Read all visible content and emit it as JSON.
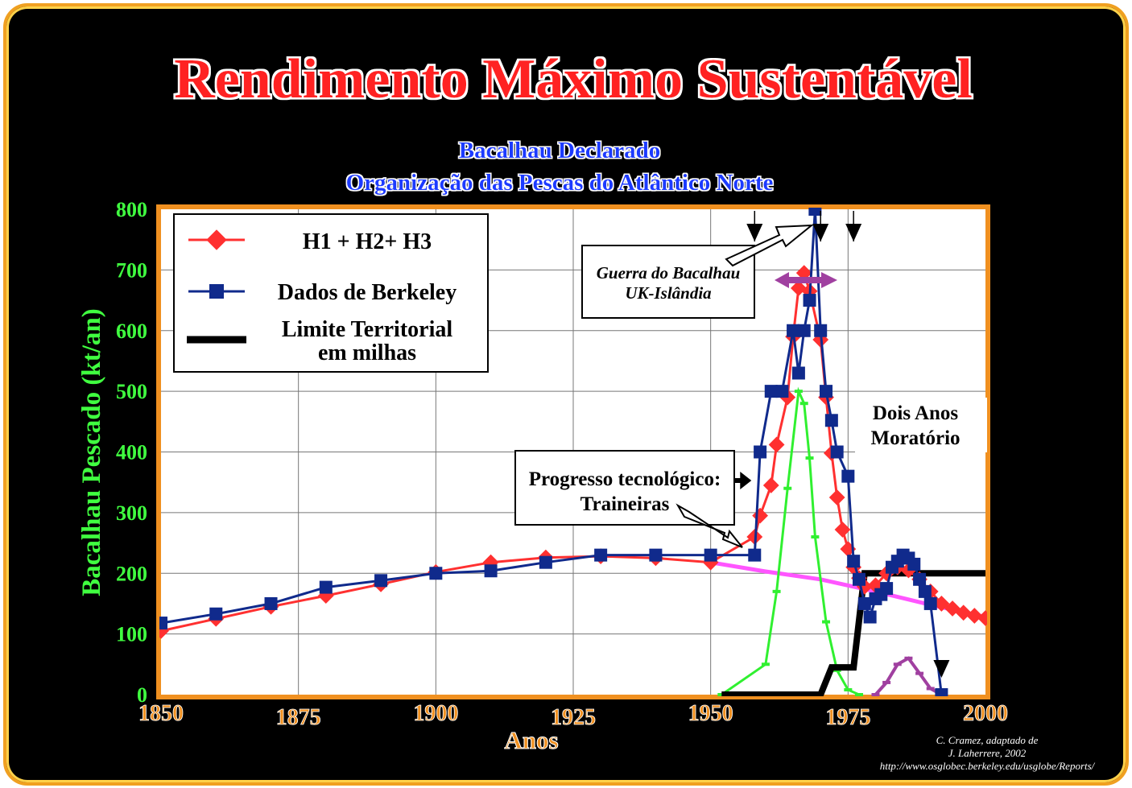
{
  "title": "Rendimento Máximo Sustentável",
  "subtitle_line1": "Bacalhau Declarado",
  "subtitle_line2": "Organização das Pescas do Atlântico Norte",
  "credit_line1": "C. Cramez, adaptado de",
  "credit_line2": "J. Laherrere, 2002",
  "credit_line3": "http://www.osglobec.berkeley.edu/usglobe/Reports/",
  "annotation_war_line1": "Guerra do Bacalhau",
  "annotation_war_line2": "UK-Islândia",
  "annotation_moratorium_line1": "Dois Anos",
  "annotation_moratorium_line2": "Moratório",
  "annotation_tech_line1": "Progresso tecnológico:",
  "annotation_tech_line2": "Traineiras",
  "colors": {
    "background": "#000000",
    "frame": "#f0a020",
    "title": "#ff2020",
    "subtitle": "#1a3aff",
    "axis_text": "#40ff40",
    "tick_x": "#f09020",
    "h_series": "#ff3030",
    "berkeley": "#102a8c",
    "territorial": "#000000",
    "green_curve": "#30f030",
    "magenta_curve": "#ff55ff",
    "purple_curve": "#a040a0"
  },
  "chart_data": {
    "type": "line",
    "xlabel": "Anos",
    "ylabel": "Bacalhau  Pescado (kt/an)",
    "xlim": [
      1850,
      2000
    ],
    "ylim": [
      0,
      800
    ],
    "x_ticks": [
      "1850",
      "1875",
      "1900",
      "1925",
      "1950",
      "1975",
      "2000"
    ],
    "y_ticks": [
      "0",
      "100",
      "200",
      "300",
      "400",
      "500",
      "600",
      "700",
      "800"
    ],
    "grid": true,
    "legend_placement": "top-left",
    "legend": [
      {
        "label": "H1 + H2+ H3"
      },
      {
        "label": "Dados de Berkeley"
      },
      {
        "label_line1": "Limite Territorial",
        "label_line2": "em milhas"
      }
    ],
    "series": [
      {
        "name": "H1 + H2+ H3",
        "points": [
          [
            1850,
            105
          ],
          [
            1860,
            125
          ],
          [
            1870,
            145
          ],
          [
            1880,
            163
          ],
          [
            1890,
            182
          ],
          [
            1900,
            202
          ],
          [
            1910,
            218
          ],
          [
            1920,
            226
          ],
          [
            1930,
            228
          ],
          [
            1940,
            225
          ],
          [
            1950,
            218
          ],
          [
            1958,
            260
          ],
          [
            1959,
            295
          ],
          [
            1961,
            345
          ],
          [
            1962,
            412
          ],
          [
            1964,
            490
          ],
          [
            1965,
            590
          ],
          [
            1966,
            670
          ],
          [
            1967,
            695
          ],
          [
            1968,
            665
          ],
          [
            1970,
            585
          ],
          [
            1971,
            490
          ],
          [
            1972,
            398
          ],
          [
            1973,
            325
          ],
          [
            1974,
            272
          ],
          [
            1975,
            240
          ],
          [
            1976,
            210
          ],
          [
            1977,
            192
          ],
          [
            1978,
            178
          ],
          [
            1980,
            180
          ],
          [
            1982,
            200
          ],
          [
            1984,
            210
          ],
          [
            1986,
            205
          ],
          [
            1988,
            190
          ],
          [
            1990,
            170
          ],
          [
            1992,
            150
          ],
          [
            1994,
            142
          ],
          [
            1996,
            135
          ],
          [
            1998,
            130
          ],
          [
            2000,
            126
          ]
        ]
      },
      {
        "name": "Dados de Berkeley",
        "points": [
          [
            1850,
            118
          ],
          [
            1860,
            133
          ],
          [
            1870,
            150
          ],
          [
            1880,
            177
          ],
          [
            1890,
            188
          ],
          [
            1900,
            200
          ],
          [
            1910,
            204
          ],
          [
            1920,
            218
          ],
          [
            1930,
            230
          ],
          [
            1940,
            230
          ],
          [
            1950,
            230
          ],
          [
            1958,
            230
          ],
          [
            1959,
            400
          ],
          [
            1961,
            500
          ],
          [
            1963,
            500
          ],
          [
            1965,
            600
          ],
          [
            1966,
            530
          ],
          [
            1967,
            600
          ],
          [
            1968,
            650
          ],
          [
            1969,
            800
          ],
          [
            1970,
            600
          ],
          [
            1971,
            500
          ],
          [
            1972,
            452
          ],
          [
            1973,
            400
          ],
          [
            1975,
            360
          ],
          [
            1976,
            220
          ],
          [
            1977,
            190
          ],
          [
            1978,
            150
          ],
          [
            1979,
            128
          ],
          [
            1980,
            158
          ],
          [
            1981,
            165
          ],
          [
            1982,
            175
          ],
          [
            1983,
            210
          ],
          [
            1984,
            220
          ],
          [
            1985,
            230
          ],
          [
            1986,
            225
          ],
          [
            1987,
            215
          ],
          [
            1988,
            190
          ],
          [
            1989,
            170
          ],
          [
            1990,
            150
          ],
          [
            1992,
            0
          ]
        ]
      },
      {
        "name": "Limite Territorial em milhas",
        "points": [
          [
            1952,
            0
          ],
          [
            1970,
            0
          ],
          [
            1972,
            45
          ],
          [
            1976,
            45
          ],
          [
            1978,
            200
          ],
          [
            2000,
            200
          ]
        ]
      },
      {
        "points": [
          [
            1952,
            0
          ],
          [
            1960,
            50
          ],
          [
            1962,
            170
          ],
          [
            1964,
            340
          ],
          [
            1966,
            500
          ],
          [
            1967,
            480
          ],
          [
            1968,
            390
          ],
          [
            1969,
            260
          ],
          [
            1971,
            120
          ],
          [
            1973,
            40
          ],
          [
            1975,
            8
          ],
          [
            1977,
            0
          ]
        ]
      },
      {
        "points": [
          [
            1950,
            218
          ],
          [
            1960,
            203
          ],
          [
            1970,
            190
          ],
          [
            1980,
            170
          ],
          [
            1990,
            148
          ],
          [
            2000,
            128
          ]
        ]
      },
      {
        "points": [
          [
            1980,
            0
          ],
          [
            1982,
            20
          ],
          [
            1984,
            50
          ],
          [
            1986,
            60
          ],
          [
            1988,
            35
          ],
          [
            1990,
            10
          ],
          [
            1992,
            0
          ]
        ]
      }
    ],
    "event_markers_x": [
      1958,
      1970,
      1976,
      1992
    ]
  }
}
